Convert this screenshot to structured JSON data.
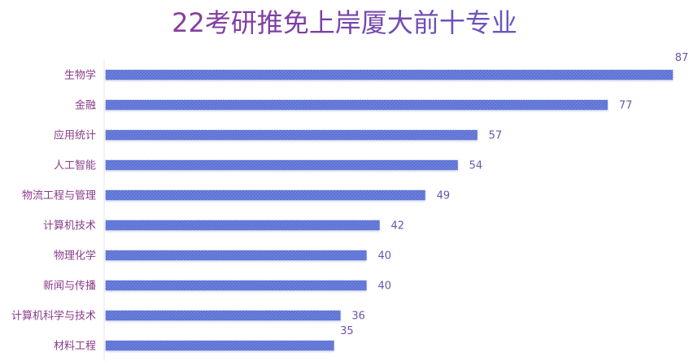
{
  "chart_data": {
    "type": "bar",
    "orientation": "horizontal",
    "title": "22考研推免上岸厦大前十专业",
    "xlabel": "",
    "ylabel": "",
    "categories": [
      "生物学",
      "金融",
      "应用统计",
      "人工智能",
      "物流工程与管理",
      "计算机技术",
      "物理化学",
      "新闻与传播",
      "计算机科学与技术",
      "材料工程"
    ],
    "values": [
      87,
      77,
      57,
      54,
      49,
      42,
      40,
      40,
      36,
      35
    ],
    "xlim": [
      0,
      87
    ],
    "grid": false,
    "legend": "none",
    "colors": {
      "bar": "#6a7fdc",
      "bar_edge": "#5d70d2",
      "category_label": "#8a3a8a",
      "value_label": "#6a55a8",
      "axis_line": "#e6e6e6"
    }
  }
}
